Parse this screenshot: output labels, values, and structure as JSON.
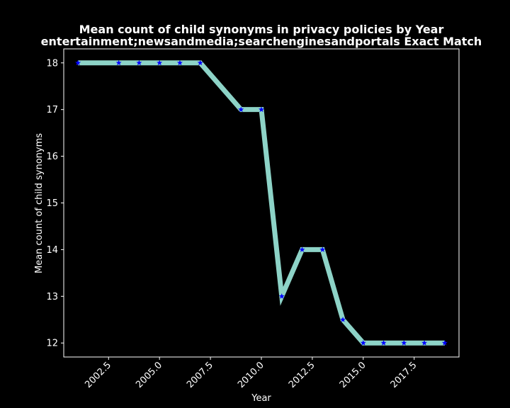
{
  "chart_data": {
    "type": "line",
    "title": "Mean count of child synonyms in privacy policies by Year",
    "subtitle": "entertainment;newsandmedia;searchenginesandportals Exact Match",
    "xlabel": "Year",
    "ylabel": "Mean count of child synonyms",
    "xlim": [
      2000.3,
      2019.7
    ],
    "ylim": [
      11.7,
      18.3
    ],
    "x_ticks": [
      2002.5,
      2005.0,
      2007.5,
      2010.0,
      2012.5,
      2015.0,
      2017.5
    ],
    "x_tick_labels": [
      "2002.5",
      "2005.0",
      "2007.5",
      "2010.0",
      "2012.5",
      "2015.0",
      "2017.5"
    ],
    "y_ticks": [
      12,
      13,
      14,
      15,
      16,
      17,
      18
    ],
    "y_tick_labels": [
      "12",
      "13",
      "14",
      "15",
      "16",
      "17",
      "18"
    ],
    "grid": false,
    "series": [
      {
        "x": [
          2001,
          2003,
          2004,
          2005,
          2006,
          2007,
          2009,
          2010,
          2011,
          2012,
          2013,
          2014,
          2015,
          2016,
          2017,
          2018,
          2019
        ],
        "y": [
          18,
          18,
          18,
          18,
          18,
          18,
          17,
          17,
          13,
          14,
          14,
          12.5,
          12,
          12,
          12,
          12,
          12
        ],
        "line_color": "#8dd3c7",
        "marker_color": "#0000ff",
        "marker": "star"
      }
    ]
  },
  "colors": {
    "background": "#000000",
    "axes": "#ffffff",
    "text": "#ffffff"
  }
}
